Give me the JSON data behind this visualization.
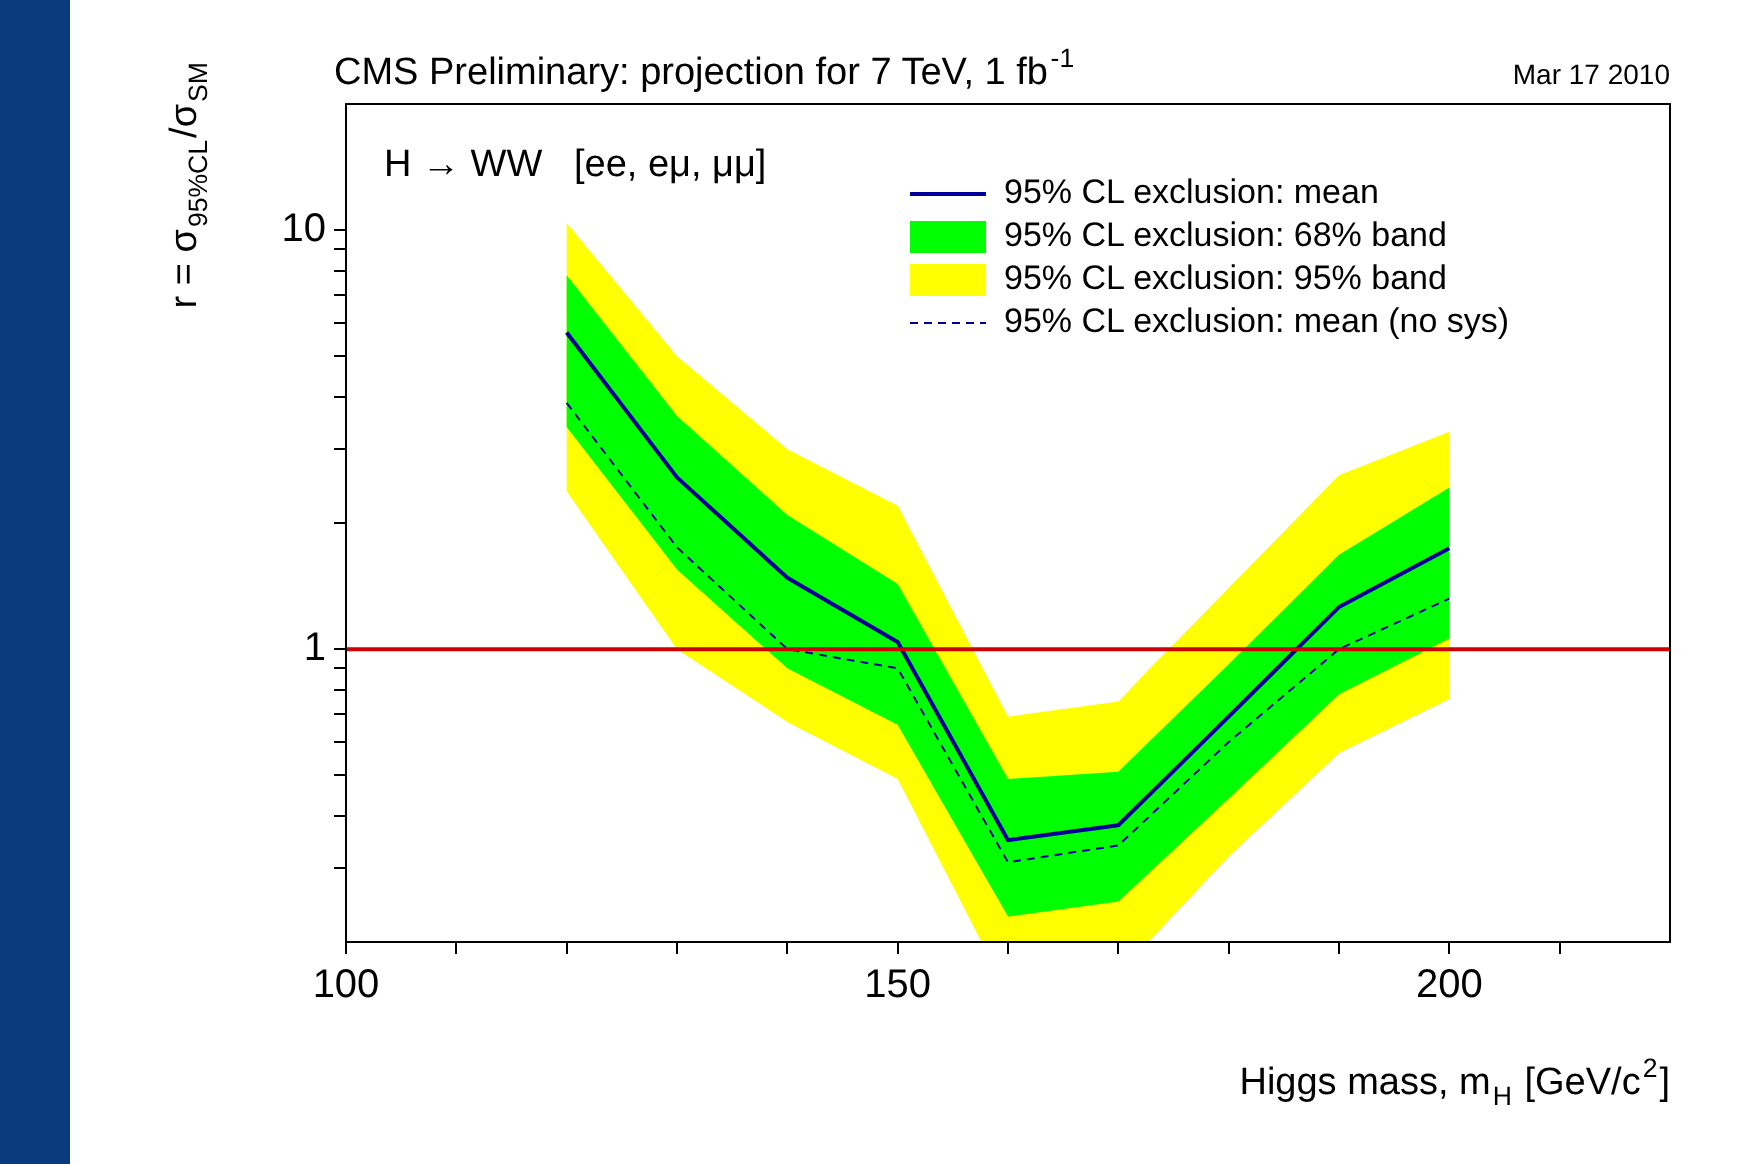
{
  "chart_data": {
    "type": "line",
    "title": "CMS Preliminary: projection for 7 TeV, 1 fb$^{-1}$",
    "xlabel": "Higgs mass, m$_{H}$ [GeV/c$^{2}$]",
    "ylabel": "r = σ$_{95%CL}$/σ$_{SM}$",
    "annotations": [
      "H → WW   [ee, eμ, μμ]",
      "Mar 17 2010"
    ],
    "x": [
      120,
      130,
      140,
      150,
      160,
      170,
      180,
      190,
      200
    ],
    "xlim": [
      100,
      220
    ],
    "xticks": [
      100,
      {
        "value": 110,
        "label": null
      },
      {
        "value": 120,
        "label": null
      },
      {
        "value": 130,
        "label": null
      },
      {
        "value": 140,
        "label": null
      },
      150,
      {
        "value": 160,
        "label": null
      },
      {
        "value": 170,
        "label": null
      },
      {
        "value": 180,
        "label": null
      },
      {
        "value": 190,
        "label": null
      },
      200,
      {
        "value": 210,
        "label": null
      }
    ],
    "ylim": [
      0.2,
      20
    ],
    "yticks": [
      {
        "value": 0.3,
        "label": null
      },
      {
        "value": 0.4,
        "label": null
      },
      {
        "value": 0.5,
        "label": null
      },
      {
        "value": 0.6,
        "label": null
      },
      {
        "value": 0.7,
        "label": null
      },
      {
        "value": 0.8,
        "label": null
      },
      {
        "value": 0.9,
        "label": null
      },
      1,
      {
        "value": 2,
        "label": null
      },
      {
        "value": 3,
        "label": null
      },
      {
        "value": 4,
        "label": null
      },
      {
        "value": 5,
        "label": null
      },
      {
        "value": 6,
        "label": null
      },
      {
        "value": 7,
        "label": null
      },
      {
        "value": 8,
        "label": null
      },
      {
        "value": 9,
        "label": null
      },
      10
    ],
    "log": "y",
    "legend": "top right",
    "marker": "none",
    "ref_lines": [
      {
        "axis": "y",
        "value": 1,
        "color": "#cc0000"
      }
    ],
    "series": [
      {
        "name": "95% CL exclusion: mean",
        "color": "#000099",
        "values": [
          5.7,
          2.57,
          1.48,
          1.04,
          0.35,
          0.38,
          0.69,
          1.26,
          1.74
        ]
      },
      {
        "name": "95% CL exclusion: 68% band",
        "color": "#00ff00",
        "values": [
          null,
          null,
          null,
          null,
          null,
          null,
          null,
          null,
          null
        ],
        "lower": [
          3.39,
          1.55,
          0.9,
          0.66,
          0.23,
          0.25,
          0.44,
          0.78,
          1.06
        ],
        "upper": [
          7.8,
          3.6,
          2.09,
          1.43,
          0.49,
          0.51,
          0.92,
          1.68,
          2.43
        ]
      },
      {
        "name": "95% CL exclusion: 95% band",
        "color": "#ffff00",
        "x": [
          120,
          130,
          140,
          150,
          157.6,
          160,
          170,
          172.7,
          180,
          190,
          200
        ],
        "values": [
          null,
          null,
          null,
          null,
          null,
          null,
          null,
          null,
          null,
          null,
          null
        ],
        "lower": [
          2.38,
          1.0,
          0.67,
          0.49,
          0.2,
          0.2,
          0.2,
          0.2,
          0.32,
          0.565,
          0.76
        ],
        "upper": [
          10.4,
          5.0,
          3.0,
          2.2,
          0.91,
          0.69,
          0.75,
          0.89,
          1.4,
          2.6,
          3.3
        ]
      },
      {
        "name": "95% CL exclusion: mean (no sys)",
        "color": "#000099",
        "line_style": "dashed",
        "values": [
          3.87,
          1.75,
          1.0,
          0.9,
          0.31,
          0.34,
          0.6,
          1.0,
          1.32
        ]
      }
    ]
  }
}
